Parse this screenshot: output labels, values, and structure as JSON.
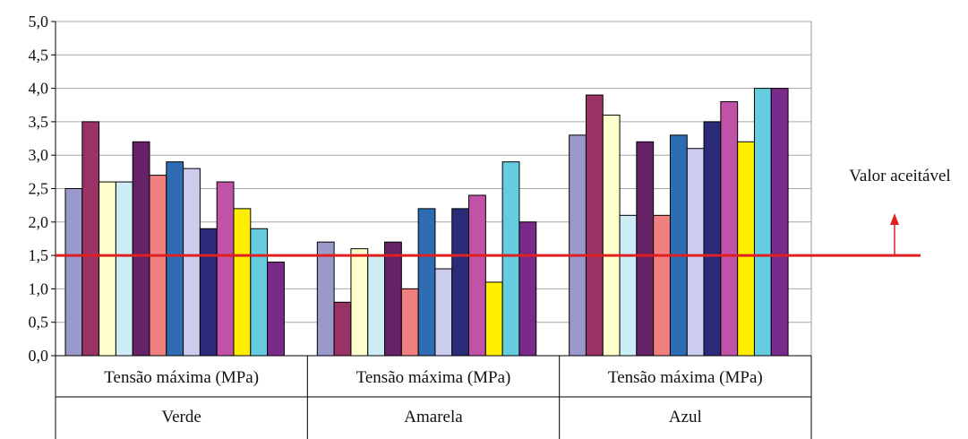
{
  "chart_data": {
    "type": "bar",
    "title": "",
    "ylabel": "",
    "xlabel": "",
    "ylim": [
      0,
      5
    ],
    "ytick_step": 0.5,
    "y_tick_labels": [
      "0,0",
      "0,5",
      "1,0",
      "1,5",
      "2,0",
      "2,5",
      "3,0",
      "3,5",
      "4,0",
      "4,5",
      "5,0"
    ],
    "grid": "horizontal",
    "legend": "none",
    "categories": [
      {
        "measure": "Tensão máxima (MPa)",
        "group": "Verde"
      },
      {
        "measure": "Tensão máxima (MPa)",
        "group": "Amarela"
      },
      {
        "measure": "Tensão máxima (MPa)",
        "group": "Azul"
      }
    ],
    "series": [
      {
        "color": "#9999cc",
        "values": [
          2.5,
          1.7,
          3.3
        ]
      },
      {
        "color": "#993366",
        "values": [
          3.5,
          0.8,
          3.9
        ]
      },
      {
        "color": "#ffffcc",
        "values": [
          2.6,
          1.6,
          3.6
        ]
      },
      {
        "color": "#ccecf6",
        "values": [
          2.6,
          1.5,
          2.1
        ]
      },
      {
        "color": "#662266",
        "values": [
          3.2,
          1.7,
          3.2
        ]
      },
      {
        "color": "#f08080",
        "values": [
          2.7,
          1.0,
          2.1
        ]
      },
      {
        "color": "#2e6db4",
        "values": [
          2.9,
          2.2,
          3.3
        ]
      },
      {
        "color": "#ccccee",
        "values": [
          2.8,
          1.3,
          3.1
        ]
      },
      {
        "color": "#2b2b7a",
        "values": [
          1.9,
          2.2,
          3.5
        ]
      },
      {
        "color": "#c052a8",
        "values": [
          2.6,
          2.4,
          3.8
        ]
      },
      {
        "color": "#ffee00",
        "values": [
          2.2,
          1.1,
          3.2
        ]
      },
      {
        "color": "#66cce0",
        "values": [
          1.9,
          2.9,
          4.0
        ]
      },
      {
        "color": "#7a2a8a",
        "values": [
          1.4,
          2.0,
          4.0
        ]
      }
    ],
    "reference_line": {
      "value": 1.5,
      "color": "#e02020",
      "label": "Valor aceitável"
    }
  }
}
